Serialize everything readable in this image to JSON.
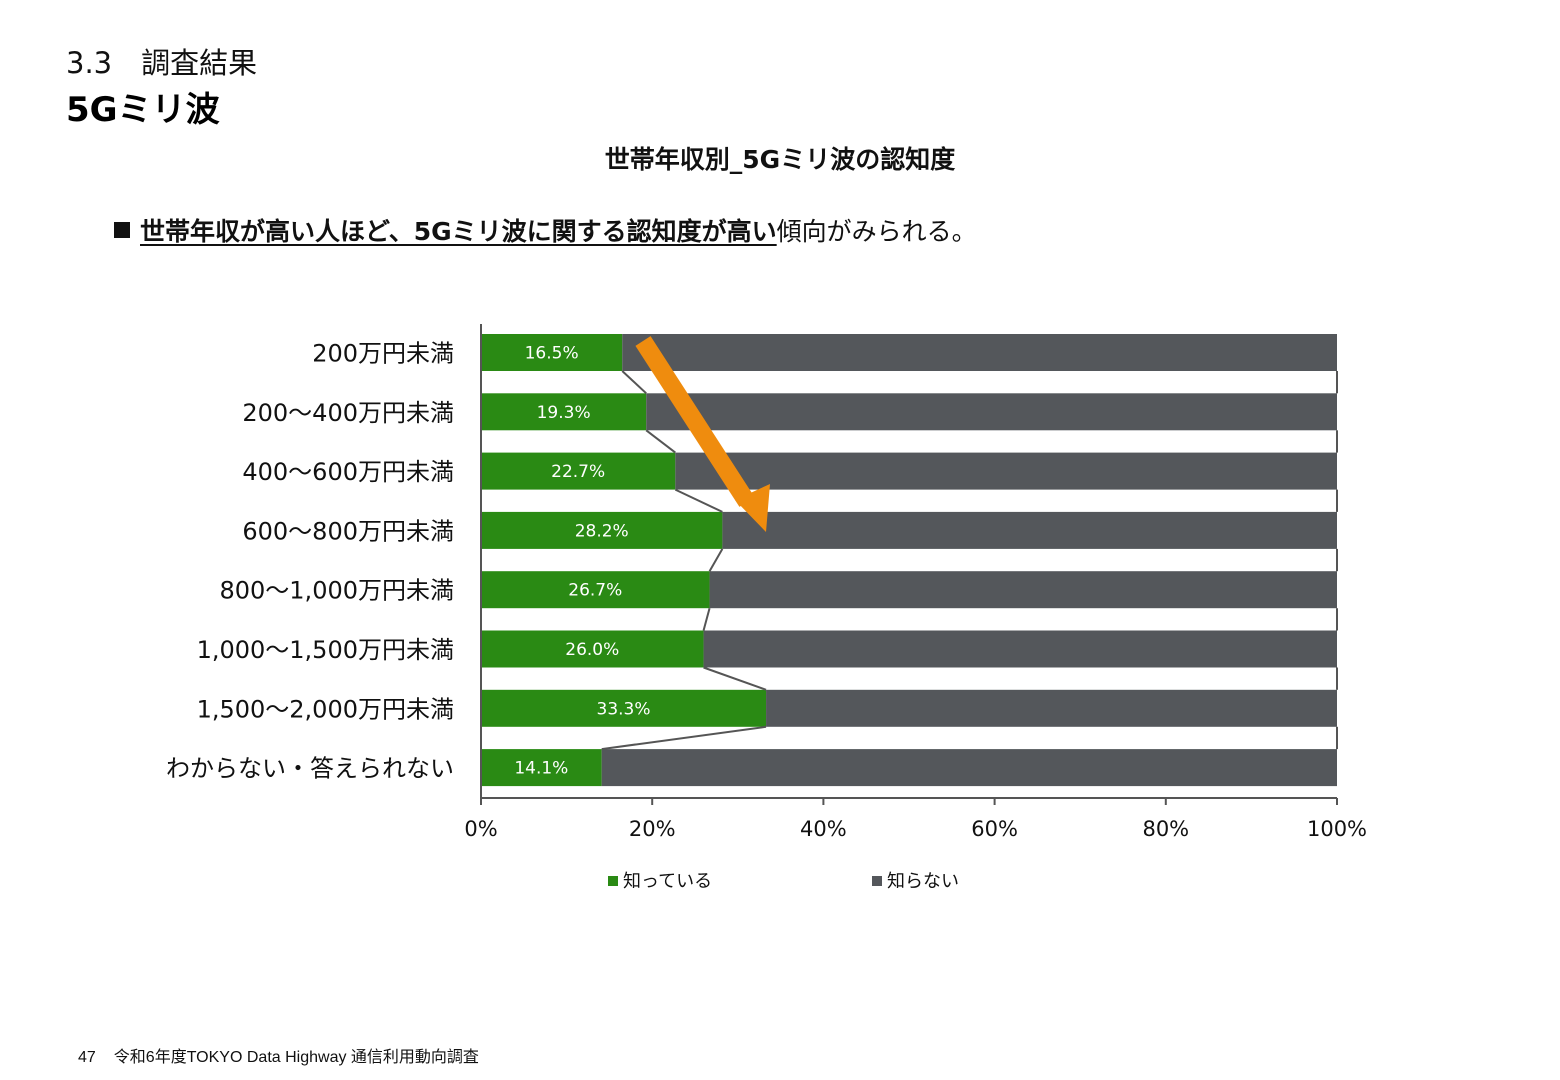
{
  "header": {
    "section_number": "3.3　調査結果",
    "section_title": "5Gミリ波"
  },
  "headline": {
    "emphasis": "世帯年収が高い人ほど、5Gミリ波に関する認知度が高い",
    "rest": "傾向がみられる。"
  },
  "footer": {
    "page_number": "47",
    "source": "令和6年度TOKYO Data Highway 通信利用動向調査"
  },
  "colors": {
    "known": "#2a8a14",
    "unknown": "#54575b",
    "arrow": "#ef8c0e",
    "axis": "#555555"
  },
  "chart_data": {
    "type": "bar",
    "orientation": "horizontal",
    "stacked": "100%",
    "title": "世帯年収別_5Gミリ波の認知度",
    "categories": [
      "200万円未満",
      "200〜400万円未満",
      "400〜600万円未満",
      "600〜800万円未満",
      "800〜1,000万円未満",
      "1,000〜1,500万円未満",
      "1,500〜2,000万円未満",
      "わからない・答えられない"
    ],
    "series": [
      {
        "name": "知っている",
        "values": [
          16.5,
          19.3,
          22.7,
          28.2,
          26.7,
          26.0,
          33.3,
          14.1
        ],
        "labels": [
          "16.5%",
          "19.3%",
          "22.7%",
          "28.2%",
          "26.7%",
          "26.0%",
          "33.3%",
          "14.1%"
        ]
      },
      {
        "name": "知らない",
        "values": [
          83.5,
          80.7,
          77.3,
          71.8,
          73.3,
          74.0,
          66.7,
          85.9
        ]
      }
    ],
    "x_ticks": [
      "0%",
      "20%",
      "40%",
      "60%",
      "80%",
      "100%"
    ],
    "xlim": [
      0,
      100
    ],
    "legend_position": "bottom",
    "series_lines": true,
    "annotation": "orange downward arrow indicating increasing awareness with income"
  }
}
